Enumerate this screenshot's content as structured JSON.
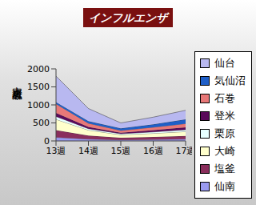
{
  "chart_data": {
    "type": "area",
    "title": "インフルエンザ",
    "y_label": "定点患者数",
    "categories": [
      "13週",
      "14週",
      "15週",
      "16週",
      "17週"
    ],
    "stacked": true,
    "grid": false,
    "legend": "right",
    "ylim": [
      0,
      2000
    ],
    "yticks": [
      0,
      500,
      1000,
      1500,
      2000
    ],
    "series": [
      {
        "name": "仙台",
        "color": "#b8b8f0",
        "values": [
          720,
          350,
          150,
          200,
          250
        ]
      },
      {
        "name": "気仙沼",
        "color": "#1f5fc8",
        "values": [
          50,
          60,
          60,
          80,
          120
        ]
      },
      {
        "name": "石巻",
        "color": "#e87878",
        "values": [
          250,
          100,
          60,
          80,
          100
        ]
      },
      {
        "name": "登米",
        "color": "#5a0a5a",
        "values": [
          100,
          50,
          30,
          50,
          70
        ]
      },
      {
        "name": "栗原",
        "color": "#e6ffff",
        "values": [
          80,
          40,
          30,
          40,
          50
        ]
      },
      {
        "name": "大崎",
        "color": "#ffffcc",
        "values": [
          300,
          150,
          80,
          100,
          120
        ]
      },
      {
        "name": "塩釜",
        "color": "#8a2e5c",
        "values": [
          200,
          100,
          60,
          70,
          90
        ]
      },
      {
        "name": "仙南",
        "color": "#9a9af0",
        "values": [
          100,
          50,
          30,
          40,
          50
        ]
      }
    ]
  }
}
